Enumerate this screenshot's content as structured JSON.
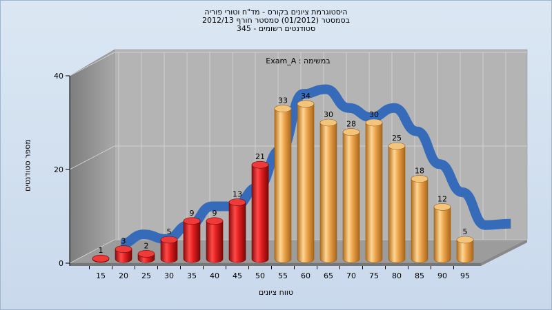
{
  "chart_data": {
    "type": "bar",
    "title_lines": [
      "היסטוגרמת ציונים בקורס - מד\"ח וטורי פוריה",
      "בסמסטר  (01/2012)  סמסטר חורף 2012/13",
      "סטודנטים רשומים - 345"
    ],
    "subtitle": "Exam_A : במשימה",
    "xlabel": "טווח ציונים",
    "ylabel": "מספר סטודנטים",
    "categories": [
      "15",
      "20",
      "25",
      "30",
      "35",
      "40",
      "45",
      "50",
      "55",
      "60",
      "65",
      "70",
      "75",
      "80",
      "85",
      "90",
      "95"
    ],
    "values": [
      1,
      3,
      2,
      5,
      9,
      9,
      13,
      21,
      33,
      34,
      30,
      28,
      30,
      25,
      18,
      12,
      5
    ],
    "ylim": [
      0,
      40
    ],
    "yticks": [
      0,
      20,
      40
    ],
    "trend_line": true,
    "colors": {
      "fail": "#d61c1c",
      "pass": "#e8a447",
      "trend": "#2f67b9"
    },
    "pass_from": "55",
    "grid": true
  }
}
